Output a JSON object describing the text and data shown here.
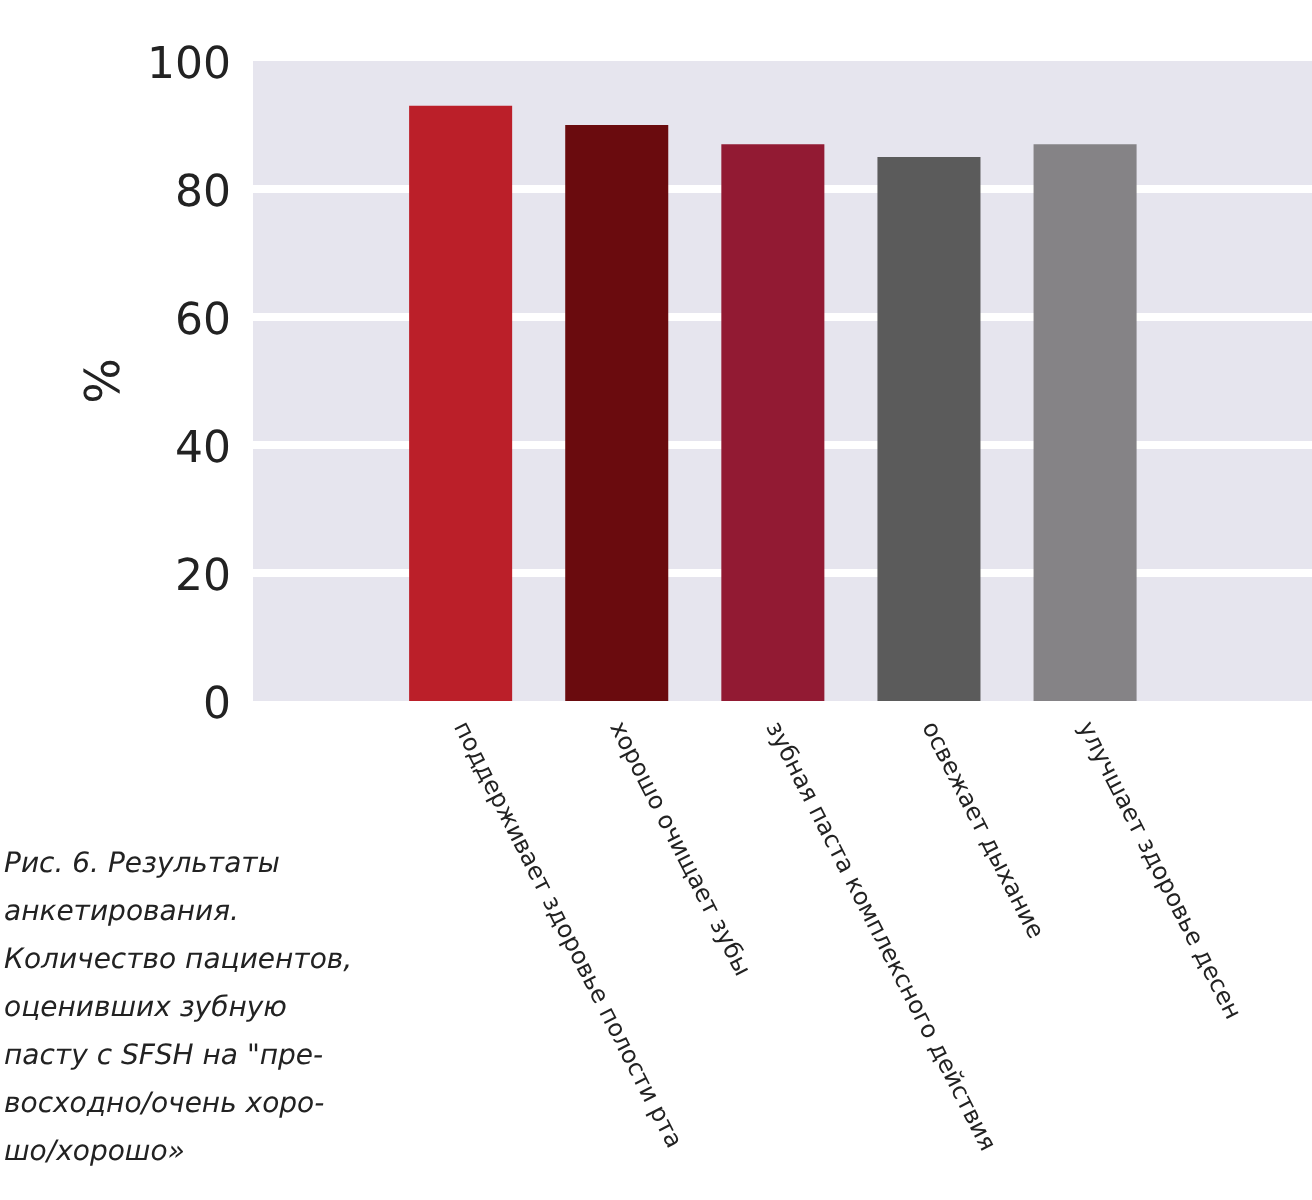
{
  "chart_data": {
    "type": "bar",
    "ylabel": "%",
    "categories": [
      "поддерживает здоровье полости рта",
      "хорошо очищает зубы",
      "зубная паста комплексного действия",
      "освежает дыхание",
      "улучшает здоровье десен"
    ],
    "values": [
      93,
      90,
      87,
      85,
      87
    ],
    "colors": [
      "#bb1f29",
      "#6a0b0e",
      "#921a33",
      "#5b5b5b",
      "#858386"
    ],
    "ylim": [
      0,
      100
    ],
    "yticks": [
      0,
      20,
      40,
      60,
      80,
      100
    ],
    "grid": "y",
    "annotations": [
      "Рис. 6. Результаты\nанкетирования.\nКоличество пациентов,\nоценивших зубную\nпасту с SFSH на \"пре-\nвосходно/очень хоро-\nшо/хорошо»"
    ]
  }
}
